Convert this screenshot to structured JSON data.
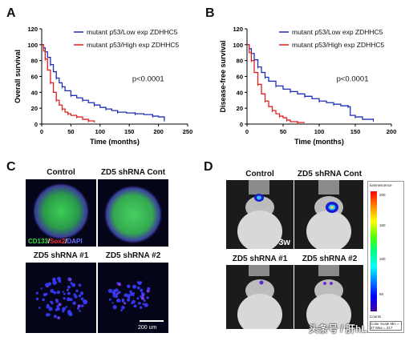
{
  "panels": {
    "A": "A",
    "B": "B",
    "C": "C",
    "D": "D"
  },
  "chart_data": [
    {
      "type": "line",
      "panel": "A",
      "ylabel": "Overall survival",
      "xlabel": "Time (months)",
      "xlim": [
        0,
        250
      ],
      "ylim": [
        0,
        120
      ],
      "xticks": [
        "0",
        "50",
        "100",
        "150",
        "200",
        "250"
      ],
      "yticks": [
        "0",
        "20",
        "40",
        "60",
        "80",
        "100",
        "120"
      ],
      "annotation": "p<0.0001",
      "legend_position": "top-right",
      "series": [
        {
          "name": "mutant p53/Low exp ZDHHC5",
          "color": "#1f2fb8",
          "x": [
            0,
            3,
            6,
            10,
            15,
            20,
            25,
            30,
            35,
            40,
            50,
            60,
            70,
            80,
            90,
            100,
            110,
            120,
            130,
            145,
            160,
            175,
            190,
            200,
            210
          ],
          "y": [
            100,
            96,
            91,
            84,
            75,
            66,
            58,
            52,
            47,
            42,
            36,
            33,
            30,
            27,
            24,
            21,
            19,
            17,
            15,
            14,
            13,
            12,
            10,
            9,
            5
          ]
        },
        {
          "name": "mutant p53/High exp ZDHHC5",
          "color": "#e02020",
          "x": [
            0,
            3,
            6,
            10,
            15,
            20,
            25,
            30,
            35,
            40,
            45,
            50,
            60,
            70,
            80,
            90
          ],
          "y": [
            100,
            92,
            82,
            68,
            52,
            40,
            30,
            24,
            19,
            15,
            13,
            11,
            9,
            6,
            4,
            2
          ]
        }
      ]
    },
    {
      "type": "line",
      "panel": "B",
      "ylabel": "Disease-free survival",
      "xlabel": "Time (months)",
      "xlim": [
        0,
        200
      ],
      "ylim": [
        0,
        120
      ],
      "xticks": [
        "0",
        "50",
        "100",
        "150",
        "200"
      ],
      "yticks": [
        "0",
        "20",
        "40",
        "60",
        "80",
        "100",
        "120"
      ],
      "annotation": "p<0.0001",
      "legend_position": "top-right",
      "series": [
        {
          "name": "mutant p53/Low exp ZDHHC5",
          "color": "#1f2fb8",
          "x": [
            0,
            3,
            6,
            10,
            15,
            20,
            25,
            30,
            40,
            50,
            60,
            70,
            80,
            90,
            100,
            110,
            120,
            130,
            140,
            143,
            150,
            160,
            175
          ],
          "y": [
            100,
            95,
            89,
            81,
            72,
            65,
            59,
            54,
            48,
            44,
            41,
            38,
            35,
            32,
            29,
            27,
            25,
            23,
            22,
            11,
            9,
            6,
            5
          ]
        },
        {
          "name": "mutant p53/High exp ZDHHC5",
          "color": "#e02020",
          "x": [
            0,
            3,
            6,
            10,
            15,
            20,
            25,
            30,
            35,
            40,
            45,
            50,
            55,
            60,
            70,
            80
          ],
          "y": [
            100,
            90,
            80,
            65,
            50,
            38,
            29,
            22,
            17,
            13,
            10,
            8,
            5,
            3,
            2,
            2
          ]
        }
      ]
    }
  ],
  "panel_c": {
    "titles": [
      "Control",
      "ZD5 shRNA Cont",
      "ZD5 shRNA #1",
      "ZD5 shRNA #2"
    ],
    "stain_cd133": "CD133",
    "stain_sep1": "/",
    "stain_sox2": "Sox2",
    "stain_sep2": "/",
    "stain_dapi": "DAPI",
    "scale_bar": "200 um",
    "colors": {
      "cd133": "#3ddc3d",
      "sox2": "#ff3030",
      "dapi": "#4a4aff"
    }
  },
  "panel_d": {
    "titles": [
      "Control",
      "ZD5 shRNA Cont",
      "ZD5 shRNA #1",
      "ZD5 shRNA #2"
    ],
    "timepoint": "3w",
    "colorbar_title": "luminescence",
    "colorbar_ticks": [
      "200",
      "150",
      "100",
      "50"
    ],
    "colorbar_footer": "Counts",
    "colorbar_note": "Color Scale Min = 27 Max = 217"
  },
  "watermark": "头条号 / 肝hL"
}
